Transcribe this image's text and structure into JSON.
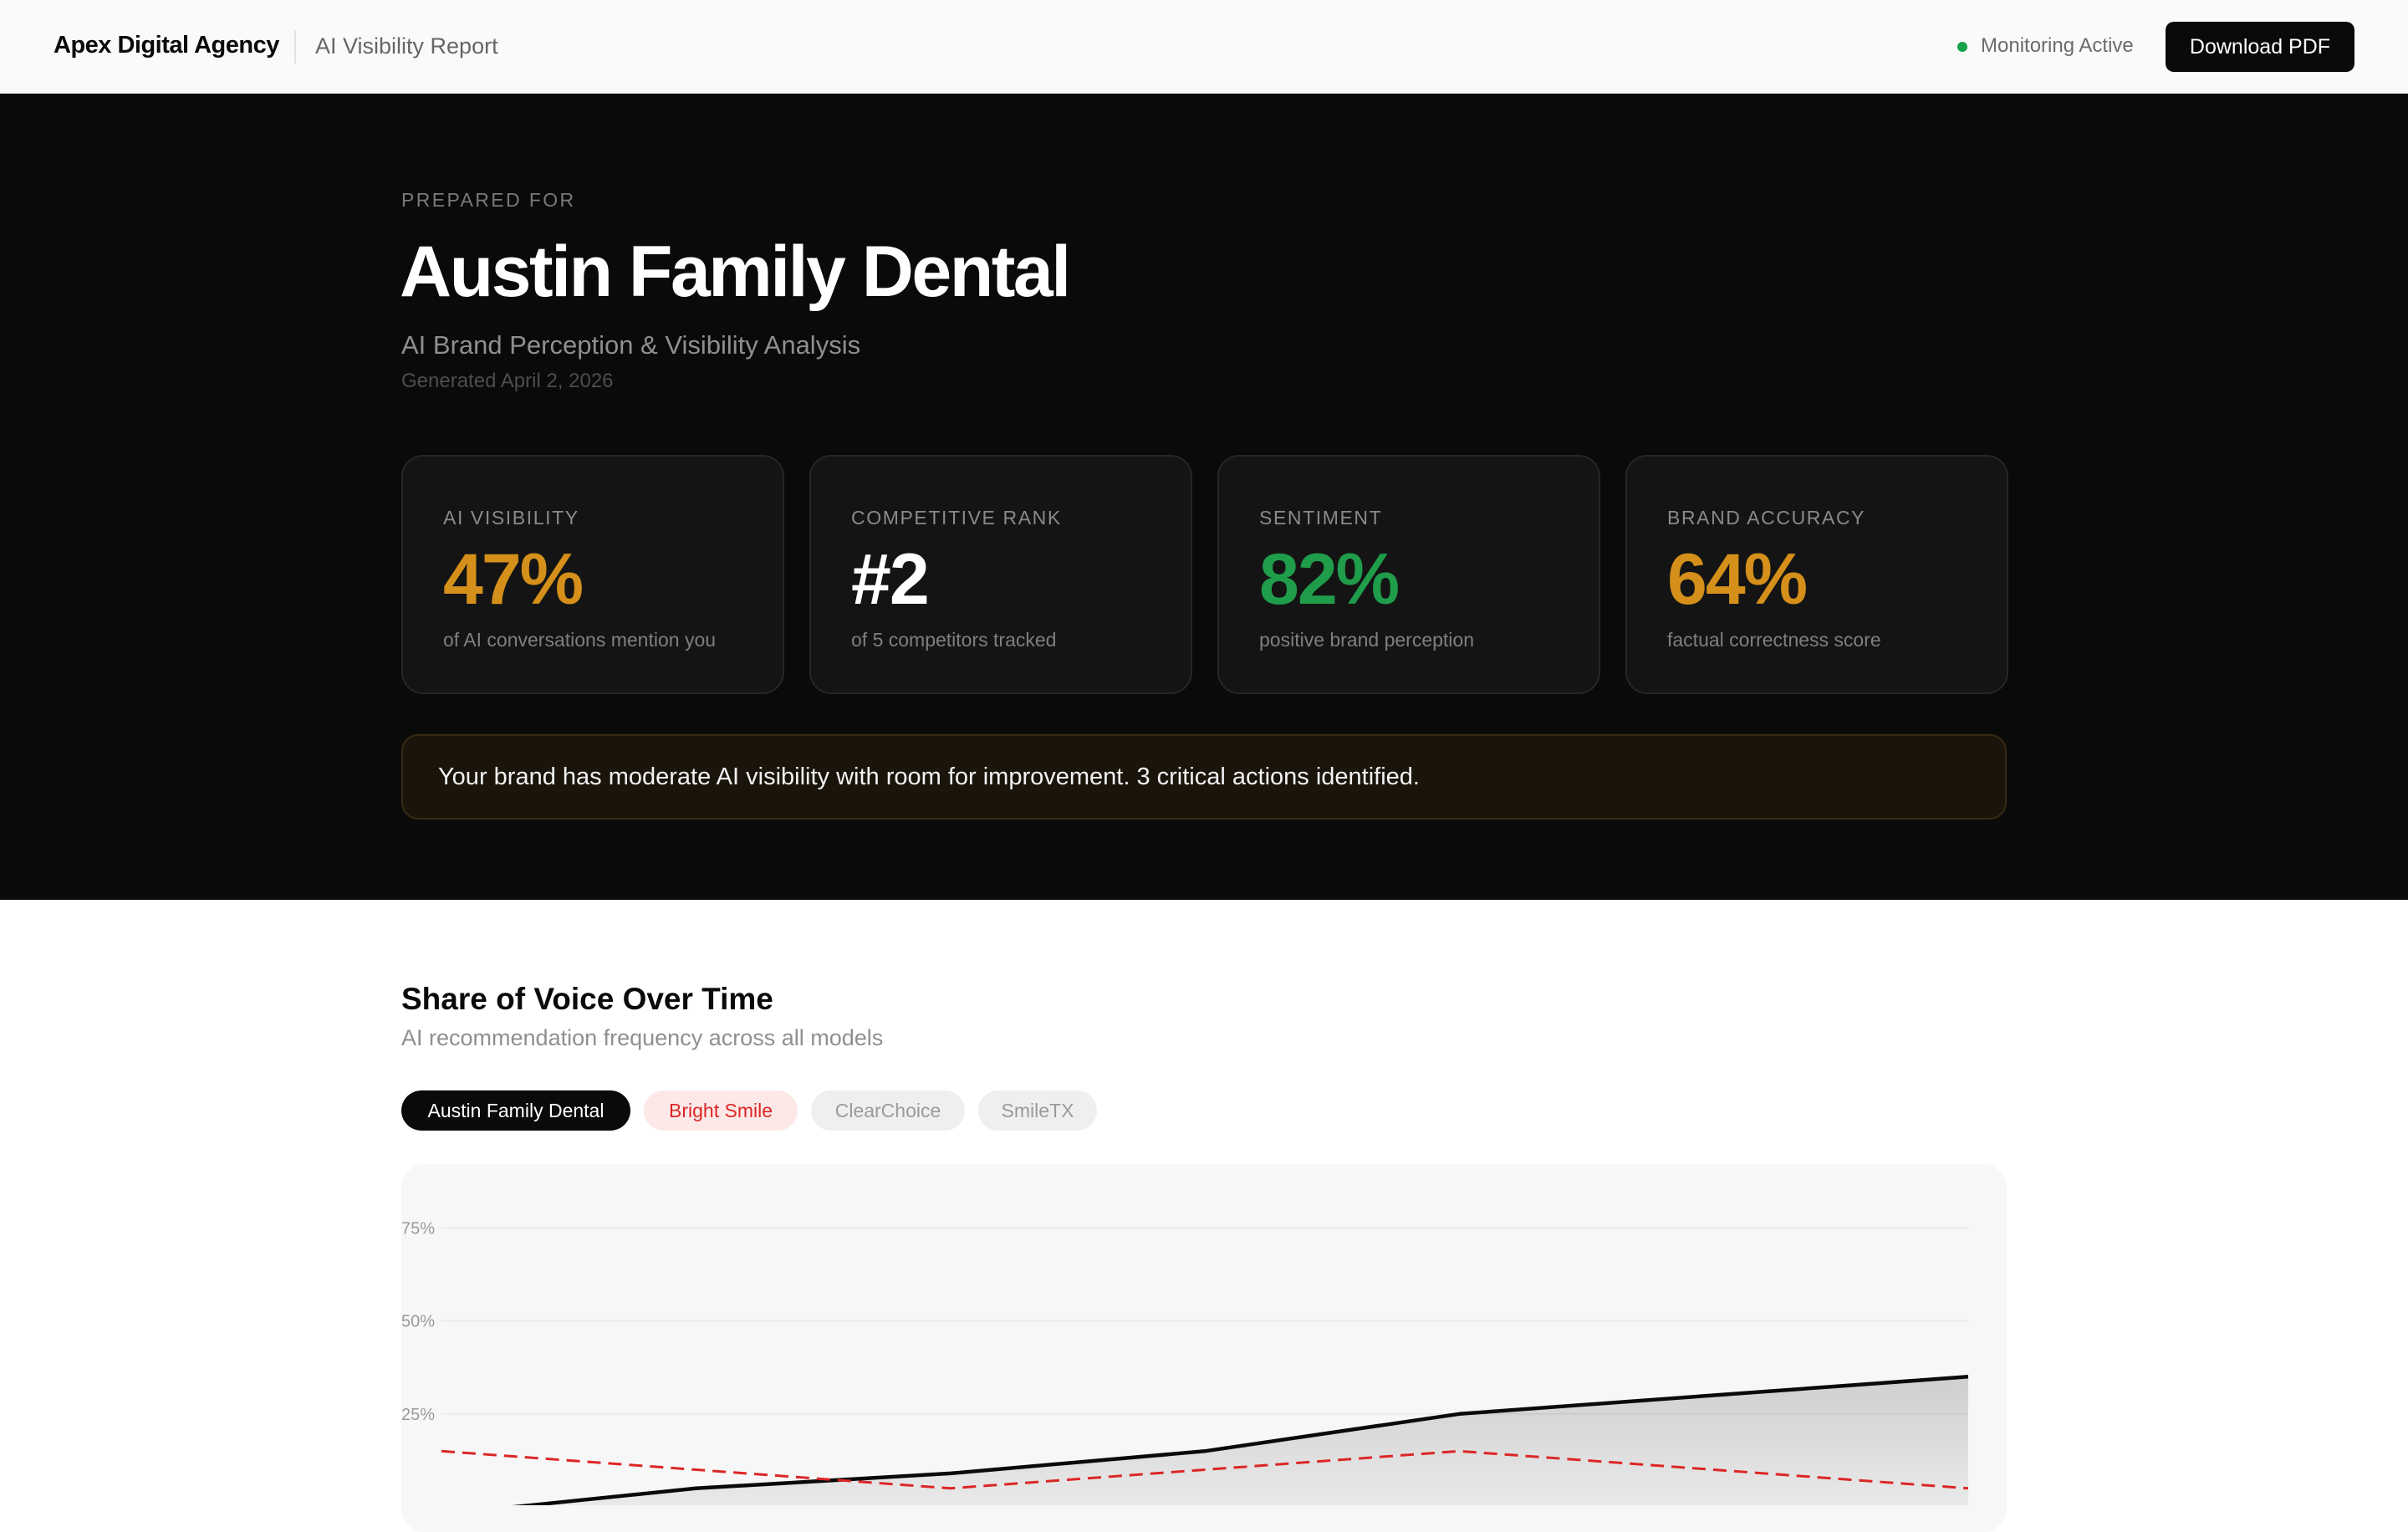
{
  "nav": {
    "brand": "Apex Digital Agency",
    "report_name": "AI Visibility Report",
    "status": "Monitoring Active",
    "download_label": "Download PDF"
  },
  "hero": {
    "prepared_for": "PREPARED FOR",
    "client": "Austin Family Dental",
    "subtitle": "AI Brand Perception & Visibility Analysis",
    "generated": "Generated April 2, 2026",
    "cards": [
      {
        "label": "AI VISIBILITY",
        "value": "47%",
        "desc": "of AI conversations mention you",
        "color": "#d4901a"
      },
      {
        "label": "COMPETITIVE RANK",
        "value": "#2",
        "desc": "of 5 competitors tracked",
        "color": "#ffffff"
      },
      {
        "label": "SENTIMENT",
        "value": "82%",
        "desc": "positive brand perception",
        "color": "#1f9d4a"
      },
      {
        "label": "BRAND ACCURACY",
        "value": "64%",
        "desc": "factual correctness score",
        "color": "#d4901a"
      }
    ],
    "alert": "Your brand has moderate AI visibility with room for improvement. 3 critical actions identified."
  },
  "sov": {
    "title": "Share of Voice Over Time",
    "subtitle": "AI recommendation frequency across all models",
    "filters": [
      {
        "label": "Austin Family Dental",
        "state": "active",
        "color": "#0a0a0a"
      },
      {
        "label": "Bright Smile",
        "state": "highlight",
        "color": "#dc2626"
      },
      {
        "label": "ClearChoice",
        "state": "inactive",
        "color": "#9a9a9a"
      },
      {
        "label": "SmileTX",
        "state": "inactive",
        "color": "#9a9a9a"
      }
    ]
  },
  "chart_data": {
    "type": "line",
    "title": "Share of Voice Over Time",
    "ylim": [
      0,
      75
    ],
    "yticks": [
      "75%",
      "50%",
      "25%"
    ],
    "ytick_values": [
      75,
      50,
      25
    ],
    "x": [
      0,
      1,
      2,
      3,
      4,
      5,
      6
    ],
    "series": [
      {
        "name": "Austin Family Dental",
        "values": [
          -2,
          5,
          9,
          15,
          25,
          30,
          35
        ],
        "color": "#0a0a0a",
        "style": "solid",
        "area": true
      },
      {
        "name": "Bright Smile",
        "values": [
          15,
          10,
          5,
          10,
          15,
          10,
          5
        ],
        "color": "#dc2626",
        "style": "dashed",
        "area": false
      }
    ],
    "grid": true
  }
}
